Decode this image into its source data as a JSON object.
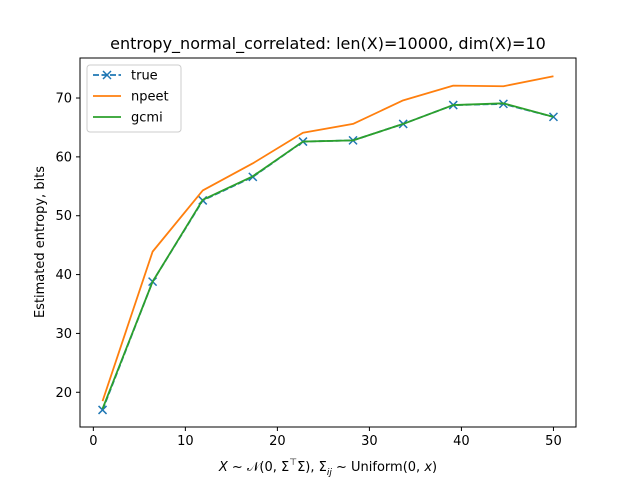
{
  "chart_data": {
    "type": "line",
    "title": "entropy_normal_correlated: len(X)=10000, dim(X)=10",
    "xlabel": "X ~ 𝒩(0, Σ⊤Σ), Σᵢⱼ ~ Uniform(0, x)",
    "xlabel_parts": {
      "lhs": "X ~ ",
      "normal": "𝒩",
      "args": "(0, Σ",
      "transpose": "⊤",
      "args_end": "Σ), Σ",
      "subscript": "ij",
      "rhs": " ~ Uniform(0, ",
      "x": "x",
      "close": ")"
    },
    "ylabel": "Estimated entropy, bits",
    "xlim": [
      -1.45,
      52.45
    ],
    "ylim": [
      14.1,
      76.8
    ],
    "xticks": [
      0,
      10,
      20,
      30,
      40,
      50
    ],
    "yticks": [
      20,
      30,
      40,
      50,
      60,
      70
    ],
    "x": [
      1,
      6.44,
      11.89,
      17.33,
      22.78,
      28.22,
      33.67,
      39.11,
      44.56,
      50
    ],
    "series": [
      {
        "name": "true",
        "color": "#1f77b4",
        "linestyle": "dashed",
        "marker": "x",
        "values": [
          17.0,
          38.8,
          52.6,
          56.6,
          62.6,
          62.8,
          65.6,
          68.8,
          69.0,
          66.8
        ]
      },
      {
        "name": "npeet",
        "color": "#ff7f0e",
        "linestyle": "solid",
        "marker": "none",
        "values": [
          18.5,
          43.9,
          54.3,
          58.9,
          64.1,
          65.6,
          69.6,
          72.1,
          72.0,
          73.7
        ]
      },
      {
        "name": "gcmi",
        "color": "#2ca02c",
        "linestyle": "solid",
        "marker": "none",
        "values": [
          17.2,
          38.8,
          52.7,
          56.7,
          62.6,
          62.8,
          65.6,
          68.8,
          69.1,
          66.8
        ]
      }
    ],
    "legend": {
      "position": "top-left",
      "entries": [
        "true",
        "npeet",
        "gcmi"
      ]
    },
    "grid": false
  }
}
